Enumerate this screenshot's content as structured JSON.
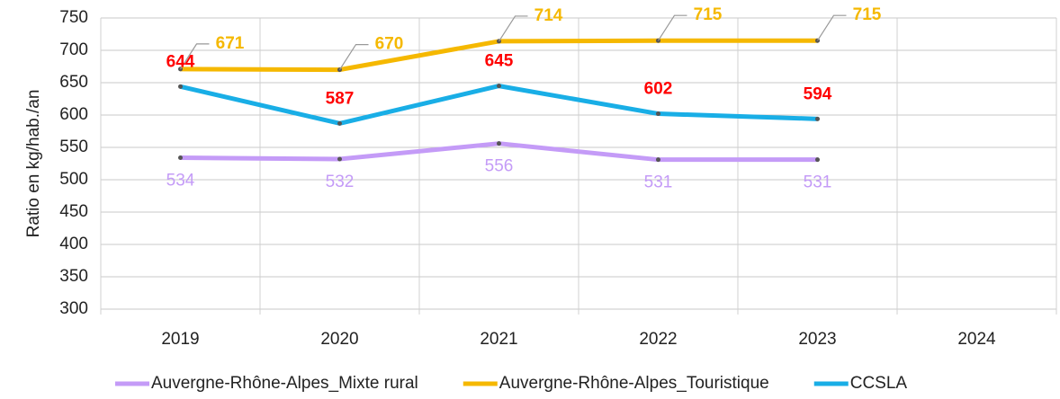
{
  "chart_data": {
    "type": "line",
    "y_label": "Ratio en kg/hab./an",
    "categories": [
      "2019",
      "2020",
      "2021",
      "2022",
      "2023",
      "2024"
    ],
    "series": [
      {
        "name": "Auvergne-Rhône-Alpes_Mixte rural",
        "color": "#c49bf7",
        "label_color": "#c49bf7",
        "label_bold": false,
        "label_position": "below",
        "values": [
          534,
          532,
          556,
          531,
          531,
          null
        ]
      },
      {
        "name": "Auvergne-Rhône-Alpes_Touristique",
        "color": "#f5b800",
        "label_color": "#f5b800",
        "label_bold": true,
        "label_position": "above-right",
        "values": [
          671,
          670,
          714,
          715,
          715,
          null
        ]
      },
      {
        "name": "CCSLA",
        "color": "#19aee6",
        "label_color": "#ff0000",
        "label_bold": true,
        "label_position": "above",
        "values": [
          644,
          587,
          645,
          602,
          594,
          null
        ]
      }
    ],
    "ylim": [
      300,
      750
    ],
    "yticks": [
      300,
      350,
      400,
      450,
      500,
      550,
      600,
      650,
      700,
      750
    ],
    "grid": true,
    "legend": "bottom"
  }
}
